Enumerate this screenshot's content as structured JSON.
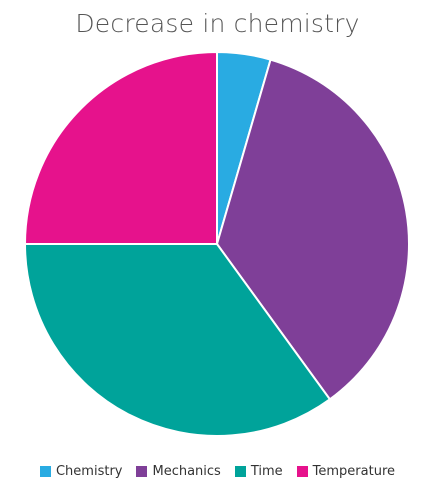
{
  "chart_data": {
    "type": "pie",
    "title": "Decrease in chemistry",
    "series": [
      {
        "name": "Chemistry",
        "value": 4.5,
        "color": "#29abe2"
      },
      {
        "name": "Mechanics",
        "value": 35.5,
        "color": "#7f3f98"
      },
      {
        "name": "Time",
        "value": 35.0,
        "color": "#00a39a"
      },
      {
        "name": "Temperature",
        "value": 25.0,
        "color": "#e6128c"
      }
    ],
    "legend_position": "bottom"
  }
}
